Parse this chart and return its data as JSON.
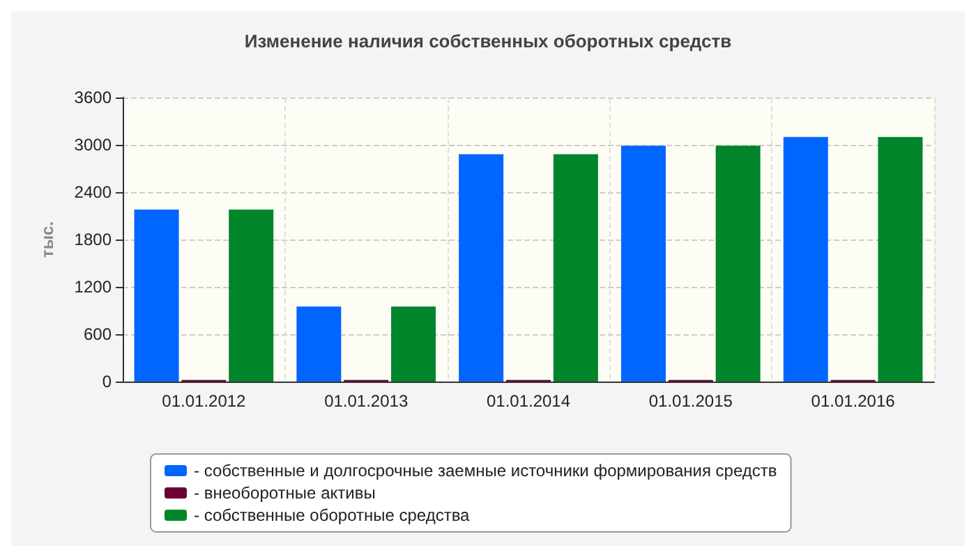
{
  "chart_data": {
    "type": "bar",
    "title": "Изменение наличия собственных оборотных средств",
    "ylabel": "тыс.",
    "categories": [
      "01.01.2012",
      "01.01.2013",
      "01.01.2014",
      "01.01.2015",
      "01.01.2016"
    ],
    "series": [
      {
        "name": "- собственные и долгосрочные заемные источники формирования средств",
        "color": "#0066ff",
        "values": [
          2180,
          950,
          2880,
          2990,
          3100
        ]
      },
      {
        "name": "- внеоборотные активы",
        "color": "#6b0032",
        "values": [
          20,
          20,
          20,
          20,
          20
        ]
      },
      {
        "name": "- собственные оборотные средства",
        "color": "#00852a",
        "values": [
          2180,
          950,
          2880,
          2990,
          3100
        ]
      }
    ],
    "ylim": [
      0,
      3600
    ],
    "yticks": [
      0,
      600,
      1200,
      1800,
      2400,
      3000,
      3600
    ],
    "grid": true,
    "legend": "bottom"
  }
}
